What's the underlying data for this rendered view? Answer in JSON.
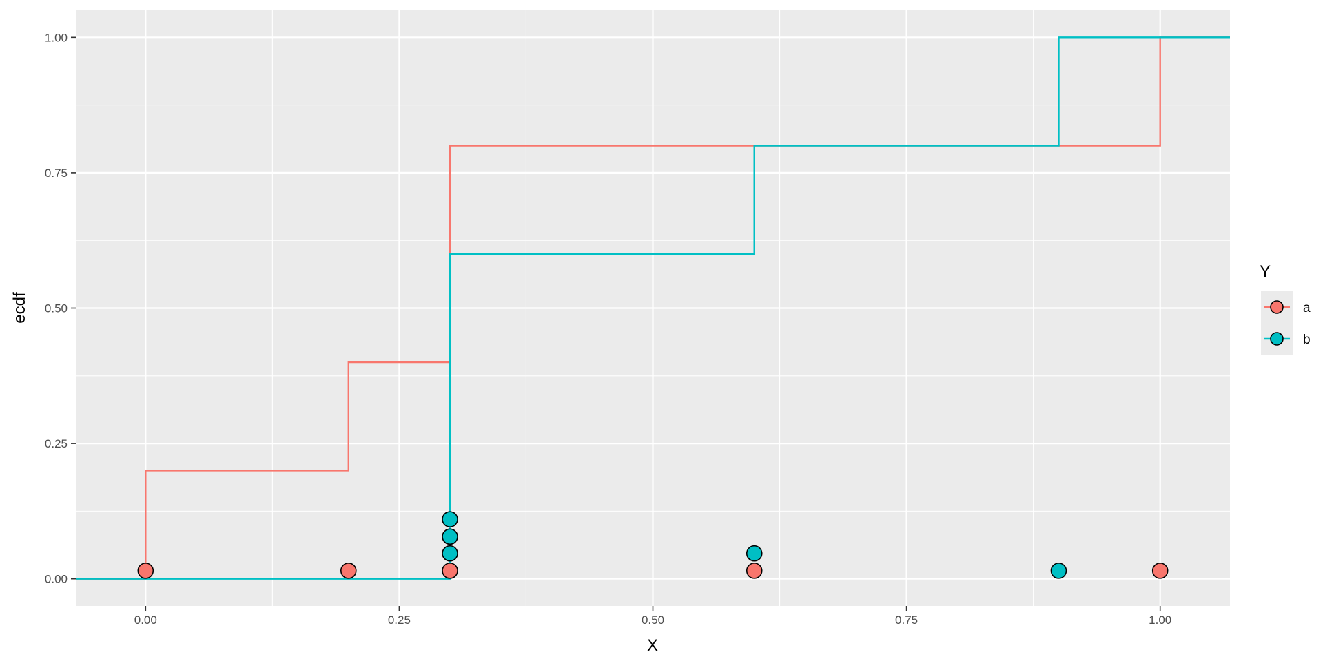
{
  "chart_data": {
    "type": "step",
    "xlabel": "X",
    "ylabel": "ecdf",
    "xlim": [
      -0.0688,
      1.0688
    ],
    "ylim": [
      -0.05,
      1.05
    ],
    "x_ticks": [
      0,
      0.25,
      0.5,
      0.75,
      1
    ],
    "x_tick_labels": [
      "0.00",
      "0.25",
      "0.50",
      "0.75",
      "1.00"
    ],
    "y_ticks": [
      0,
      0.25,
      0.5,
      0.75,
      1
    ],
    "y_tick_labels": [
      "0.00",
      "0.25",
      "0.50",
      "0.75",
      "1.00"
    ],
    "grid": true,
    "panel_background": "#ebebeb",
    "legend": {
      "title": "Y",
      "placement": "right",
      "entries": [
        {
          "label": "a",
          "color": "#F8766D"
        },
        {
          "label": "b",
          "color": "#00BFC4"
        }
      ]
    },
    "series": [
      {
        "name": "a",
        "color": "#F8766D",
        "step_x": [
          0,
          0.2,
          0.3,
          1
        ],
        "step_y": [
          0.2,
          0.4,
          0.8,
          1.0
        ],
        "points": [
          {
            "x": 0,
            "y": 0.015
          },
          {
            "x": 0.2,
            "y": 0.015
          },
          {
            "x": 0.3,
            "y": 0.015
          },
          {
            "x": 0.6,
            "y": 0.015
          },
          {
            "x": 1.0,
            "y": 0.015
          }
        ]
      },
      {
        "name": "b",
        "color": "#00BFC4",
        "step_x": [
          0.3,
          0.6,
          0.9
        ],
        "step_y": [
          0.6,
          0.8,
          1.0
        ],
        "points": [
          {
            "x": 0.3,
            "y": 0.047
          },
          {
            "x": 0.3,
            "y": 0.078
          },
          {
            "x": 0.3,
            "y": 0.11
          },
          {
            "x": 0.6,
            "y": 0.047
          },
          {
            "x": 0.9,
            "y": 0.015
          }
        ]
      }
    ]
  }
}
